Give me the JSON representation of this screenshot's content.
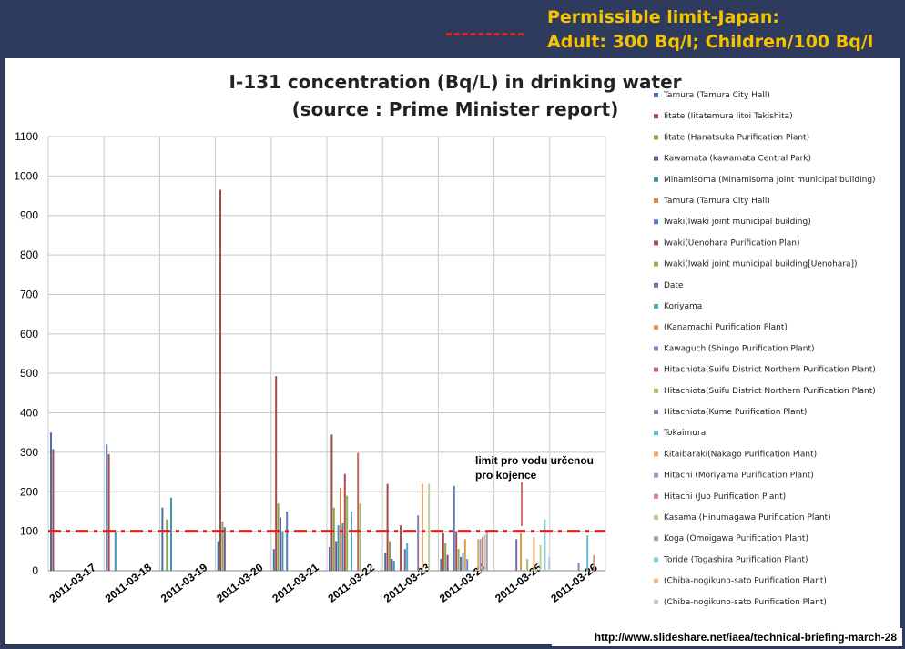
{
  "banner": {
    "limit_title": "Permissible limit-Japan:",
    "limit_values": "Adult: 300 Bq/l; Children/100  Bq/l",
    "line_color": "#e02020",
    "text_color": "#f5c400"
  },
  "annotation": {
    "line1": "limit pro vodu určenou",
    "line2": "pro kojence"
  },
  "source_url": "http://www.slideshare.net/iaea/technical-briefing-march-28",
  "chart_data": {
    "type": "bar",
    "title_line1": "I-131 concentration (Bq/L) in drinking water",
    "title_line2": "(source : Prime Minister report)",
    "ylim": [
      0,
      1100
    ],
    "yticks": [
      0,
      100,
      200,
      300,
      400,
      500,
      600,
      700,
      800,
      900,
      1000,
      1100
    ],
    "grid": true,
    "legend_position": "right",
    "threshold": 100,
    "threshold_color": "#e02020",
    "categories": [
      "2011-03-17",
      "2011-03-18",
      "2011-03-19",
      "2011-03-20",
      "2011-03-21",
      "2011-03-22",
      "2011-03-23",
      "2011-03-24",
      "2011-03-25",
      "2011-03-26"
    ],
    "series": [
      {
        "name": "Tamura (Tamura City Hall)",
        "color": "#4a6fa8"
      },
      {
        "name": "Iitate (Iitatemura Iitoi Takishita)",
        "color": "#a54a48"
      },
      {
        "name": "Iitate (Hanatsuka Purification Plant)",
        "color": "#8aa44f"
      },
      {
        "name": "Kawamata (kawamata Central Park)",
        "color": "#6e588f"
      },
      {
        "name": "Minamisoma (Minamisoma joint municipal building)",
        "color": "#3f97ae"
      },
      {
        "name": "Tamura (Tamura City Hall)",
        "color": "#d68a45"
      },
      {
        "name": "Iwaki(Iwaki joint municipal building)",
        "color": "#5b7dbd"
      },
      {
        "name": "Iwaki(Uenohara Purification Plan)",
        "color": "#b04c49"
      },
      {
        "name": "Iwaki(Iwaki joint municipal building[Uenohara])",
        "color": "#93ae5c"
      },
      {
        "name": "Date",
        "color": "#7a66a0"
      },
      {
        "name": "Koriyama",
        "color": "#4aabc5"
      },
      {
        "name": "(Kanamachi Purification Plant)",
        "color": "#e09850"
      },
      {
        "name": "Kawaguchi(Shingo Purification Plant)",
        "color": "#6f8fc8"
      },
      {
        "name": "Hitachiota(Suifu District Northern Purification Plant)",
        "color": "#c06864"
      },
      {
        "name": "Hitachiota(Suifu District Northern Purification Plant)",
        "color": "#a3bd72"
      },
      {
        "name": "Hitachiota(Kume Purification Plant)",
        "color": "#8c7cb2"
      },
      {
        "name": "Tokaimura",
        "color": "#63bcd3"
      },
      {
        "name": "Kitaibaraki(Nakago Purification Plant)",
        "color": "#eaa96a"
      },
      {
        "name": "Hitachi (Moriyama Purification Plant)",
        "color": "#8aa3d2"
      },
      {
        "name": "Hitachi (Juo Purification Plant)",
        "color": "#d58784"
      },
      {
        "name": "Kasama (Hinumagawa Purification Plant)",
        "color": "#bccf95"
      },
      {
        "name": "Koga (Omoigawa Purification Plant)",
        "color": "#a89bc6"
      },
      {
        "name": "Toride (Togashira Purification Plant)",
        "color": "#86cde0"
      },
      {
        "name": "(Chiba-nogikuno-sato Purification Plant)",
        "color": "#f0bd8c"
      },
      {
        "name": "(Chiba-nogikuno-sato Purification Plant)",
        "color": "#b9c7e2"
      }
    ],
    "bars": [
      {
        "x": "2011-03-17",
        "s": 0,
        "v": 350
      },
      {
        "x": "2011-03-17",
        "s": 1,
        "v": 308
      },
      {
        "x": "2011-03-18",
        "s": 0,
        "v": 320
      },
      {
        "x": "2011-03-18",
        "s": 1,
        "v": 295
      },
      {
        "x": "2011-03-18",
        "s": 4,
        "v": 100
      },
      {
        "x": "2011-03-19",
        "s": 0,
        "v": 160
      },
      {
        "x": "2011-03-19",
        "s": 2,
        "v": 130
      },
      {
        "x": "2011-03-19",
        "s": 4,
        "v": 185
      },
      {
        "x": "2011-03-20",
        "s": 0,
        "v": 75
      },
      {
        "x": "2011-03-20",
        "s": 1,
        "v": 965
      },
      {
        "x": "2011-03-20",
        "s": 2,
        "v": 125
      },
      {
        "x": "2011-03-20",
        "s": 3,
        "v": 110
      },
      {
        "x": "2011-03-21",
        "s": 0,
        "v": 55
      },
      {
        "x": "2011-03-21",
        "s": 1,
        "v": 493
      },
      {
        "x": "2011-03-21",
        "s": 2,
        "v": 170
      },
      {
        "x": "2011-03-21",
        "s": 3,
        "v": 135
      },
      {
        "x": "2011-03-21",
        "s": 4,
        "v": 100
      },
      {
        "x": "2011-03-21",
        "s": 6,
        "v": 150
      },
      {
        "x": "2011-03-22",
        "s": 0,
        "v": 60
      },
      {
        "x": "2011-03-22",
        "s": 1,
        "v": 345
      },
      {
        "x": "2011-03-22",
        "s": 2,
        "v": 160
      },
      {
        "x": "2011-03-22",
        "s": 3,
        "v": 75
      },
      {
        "x": "2011-03-22",
        "s": 4,
        "v": 115
      },
      {
        "x": "2011-03-22",
        "s": 5,
        "v": 210
      },
      {
        "x": "2011-03-22",
        "s": 6,
        "v": 120
      },
      {
        "x": "2011-03-22",
        "s": 7,
        "v": 245
      },
      {
        "x": "2011-03-22",
        "s": 8,
        "v": 190
      },
      {
        "x": "2011-03-22",
        "s": 10,
        "v": 150
      },
      {
        "x": "2011-03-22",
        "s": 13,
        "v": 298
      },
      {
        "x": "2011-03-22",
        "s": 14,
        "v": 170
      },
      {
        "x": "2011-03-23",
        "s": 0,
        "v": 45
      },
      {
        "x": "2011-03-23",
        "s": 1,
        "v": 220
      },
      {
        "x": "2011-03-23",
        "s": 2,
        "v": 75
      },
      {
        "x": "2011-03-23",
        "s": 3,
        "v": 30
      },
      {
        "x": "2011-03-23",
        "s": 4,
        "v": 25
      },
      {
        "x": "2011-03-23",
        "s": 7,
        "v": 115
      },
      {
        "x": "2011-03-23",
        "s": 9,
        "v": 55
      },
      {
        "x": "2011-03-23",
        "s": 10,
        "v": 70
      },
      {
        "x": "2011-03-23",
        "s": 15,
        "v": 140
      },
      {
        "x": "2011-03-23",
        "s": 17,
        "v": 220
      },
      {
        "x": "2011-03-23",
        "s": 20,
        "v": 220
      },
      {
        "x": "2011-03-24",
        "s": 0,
        "v": 30
      },
      {
        "x": "2011-03-24",
        "s": 1,
        "v": 95
      },
      {
        "x": "2011-03-24",
        "s": 2,
        "v": 70
      },
      {
        "x": "2011-03-24",
        "s": 3,
        "v": 40
      },
      {
        "x": "2011-03-24",
        "s": 6,
        "v": 215
      },
      {
        "x": "2011-03-24",
        "s": 7,
        "v": 100
      },
      {
        "x": "2011-03-24",
        "s": 8,
        "v": 55
      },
      {
        "x": "2011-03-24",
        "s": 9,
        "v": 35
      },
      {
        "x": "2011-03-24",
        "s": 10,
        "v": 45
      },
      {
        "x": "2011-03-24",
        "s": 11,
        "v": 80
      },
      {
        "x": "2011-03-24",
        "s": 12,
        "v": 30
      },
      {
        "x": "2011-03-24",
        "s": 17,
        "v": 80
      },
      {
        "x": "2011-03-24",
        "s": 18,
        "v": 80
      },
      {
        "x": "2011-03-24",
        "s": 19,
        "v": 85
      },
      {
        "x": "2011-03-24",
        "s": 20,
        "v": 90
      },
      {
        "x": "2011-03-24",
        "s": 21,
        "v": 100
      },
      {
        "x": "2011-03-25",
        "s": 9,
        "v": 80
      },
      {
        "x": "2011-03-25",
        "s": 11,
        "v": 95
      },
      {
        "x": "2011-03-25",
        "s": 14,
        "v": 30
      },
      {
        "x": "2011-03-25",
        "s": 17,
        "v": 85
      },
      {
        "x": "2011-03-25",
        "s": 20,
        "v": 65
      },
      {
        "x": "2011-03-25",
        "s": 22,
        "v": 130
      },
      {
        "x": "2011-03-25",
        "s": 24,
        "v": 35
      },
      {
        "x": "2011-03-26",
        "s": 12,
        "v": 20
      },
      {
        "x": "2011-03-26",
        "s": 16,
        "v": 90
      },
      {
        "x": "2011-03-26",
        "s": 19,
        "v": 40
      }
    ]
  }
}
